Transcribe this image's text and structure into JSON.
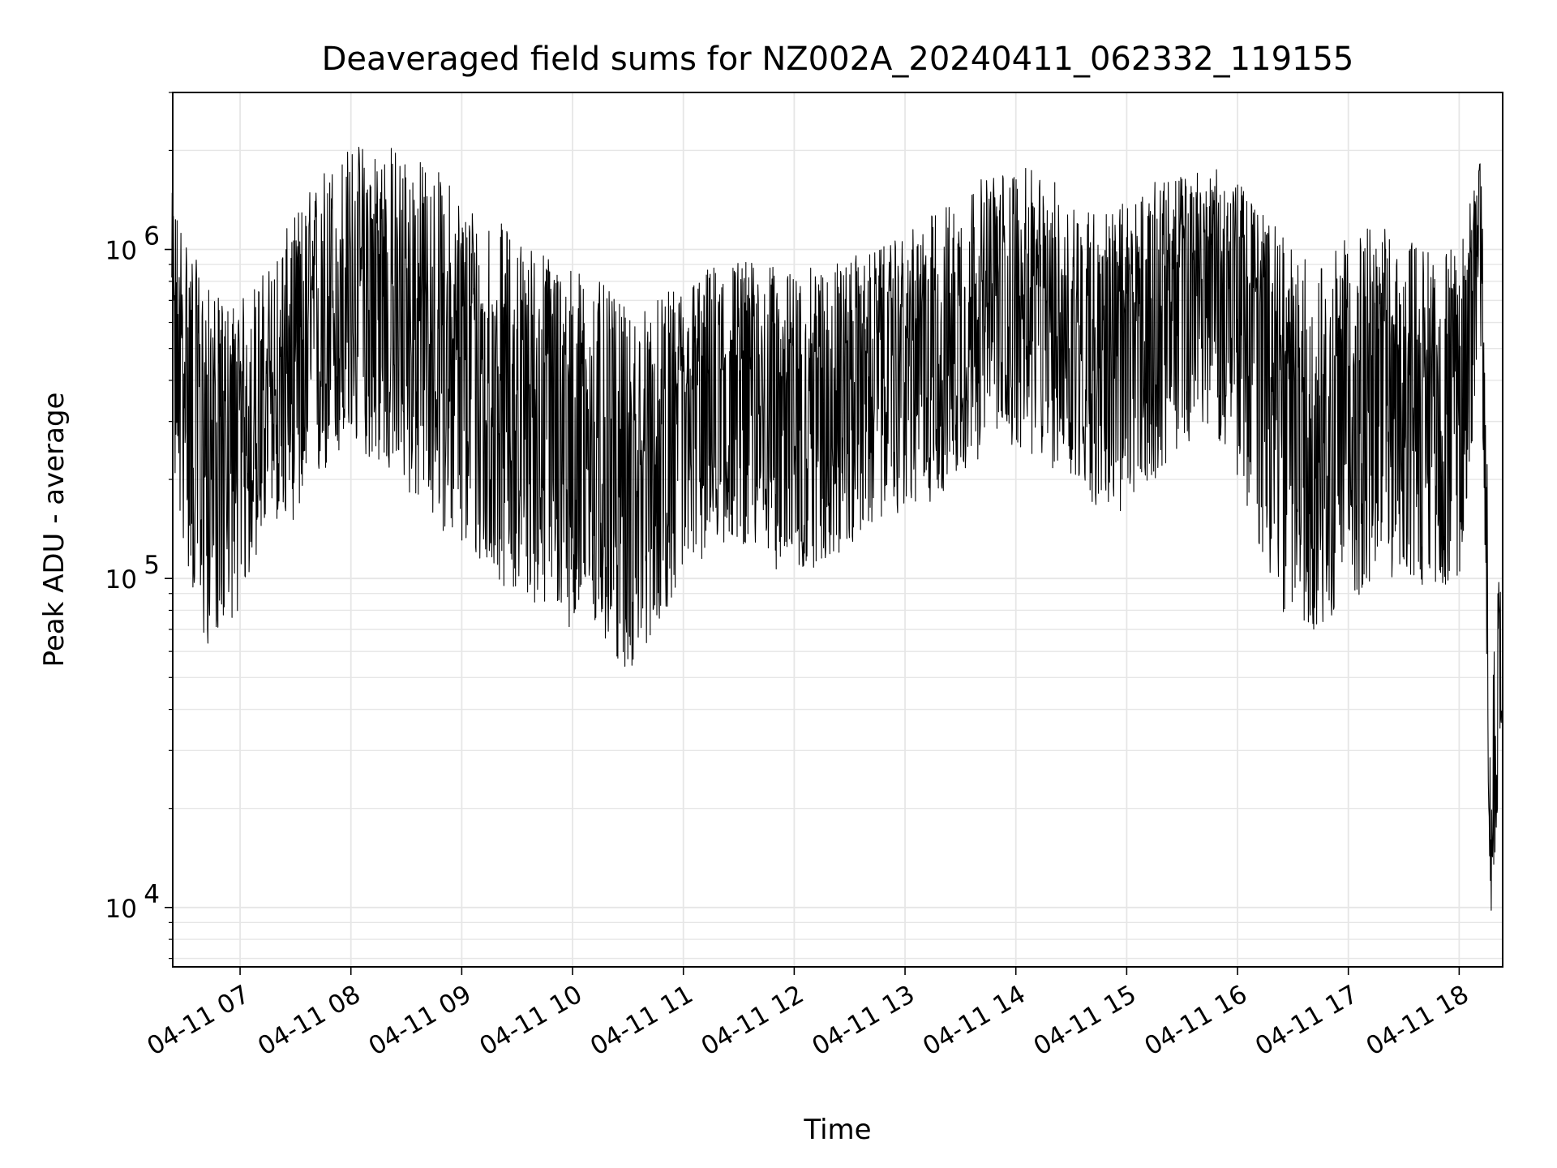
{
  "chart_data": {
    "type": "line",
    "title": "Deaveraged field sums for NZ002A_20240411_062332_119155",
    "xlabel": "Time",
    "ylabel": "Peak ADU - average",
    "yscale": "log",
    "ylim": [
      6600,
      3000000
    ],
    "xlim": [
      "2024-04-11 06:23:32",
      "2024-04-11 18:23:33"
    ],
    "grid": true,
    "line_color": "#000000",
    "grid_color": "#e6e6e6",
    "x_ticks": [
      {
        "label": "04-11 07",
        "value": "2024-04-11 07:00"
      },
      {
        "label": "04-11 08",
        "value": "2024-04-11 08:00"
      },
      {
        "label": "04-11 09",
        "value": "2024-04-11 09:00"
      },
      {
        "label": "04-11 10",
        "value": "2024-04-11 10:00"
      },
      {
        "label": "04-11 11",
        "value": "2024-04-11 11:00"
      },
      {
        "label": "04-11 12",
        "value": "2024-04-11 12:00"
      },
      {
        "label": "04-11 13",
        "value": "2024-04-11 13:00"
      },
      {
        "label": "04-11 14",
        "value": "2024-04-11 14:00"
      },
      {
        "label": "04-11 15",
        "value": "2024-04-11 15:00"
      },
      {
        "label": "04-11 16",
        "value": "2024-04-11 16:00"
      },
      {
        "label": "04-11 17",
        "value": "2024-04-11 17:00"
      },
      {
        "label": "04-11 18",
        "value": "2024-04-11 18:00"
      }
    ],
    "y_ticks": [
      {
        "base": "10",
        "exp": "4",
        "value": 10000
      },
      {
        "base": "10",
        "exp": "5",
        "value": 100000
      },
      {
        "base": "10",
        "exp": "6",
        "value": 1000000
      }
    ],
    "series": [
      {
        "x": [
          "2024-04-11 06:23",
          "2024-04-11 06:30",
          "2024-04-11 06:40",
          "2024-04-11 06:50",
          "2024-04-11 07:00",
          "2024-04-11 07:15",
          "2024-04-11 07:30",
          "2024-04-11 07:45",
          "2024-04-11 08:00",
          "2024-04-11 08:15",
          "2024-04-11 08:30",
          "2024-04-11 08:45",
          "2024-04-11 09:00",
          "2024-04-11 09:15",
          "2024-04-11 09:30",
          "2024-04-11 09:45",
          "2024-04-11 10:00",
          "2024-04-11 10:15",
          "2024-04-11 10:30",
          "2024-04-11 10:45",
          "2024-04-11 11:00",
          "2024-04-11 11:15",
          "2024-04-11 11:30",
          "2024-04-11 11:45",
          "2024-04-11 12:00",
          "2024-04-11 12:15",
          "2024-04-11 12:30",
          "2024-04-11 12:45",
          "2024-04-11 13:00",
          "2024-04-11 13:15",
          "2024-04-11 13:30",
          "2024-04-11 13:45",
          "2024-04-11 14:00",
          "2024-04-11 14:15",
          "2024-04-11 14:30",
          "2024-04-11 14:45",
          "2024-04-11 15:00",
          "2024-04-11 15:15",
          "2024-04-11 15:30",
          "2024-04-11 15:45",
          "2024-04-11 16:00",
          "2024-04-11 16:15",
          "2024-04-11 16:30",
          "2024-04-11 16:45",
          "2024-04-11 17:00",
          "2024-04-11 17:15",
          "2024-04-11 17:30",
          "2024-04-11 17:45",
          "2024-04-11 18:00",
          "2024-04-11 18:12",
          "2024-04-11 18:17",
          "2024-04-11 18:23"
        ],
        "y": [
          600000,
          450000,
          300000,
          280000,
          280000,
          330000,
          450000,
          600000,
          700000,
          750000,
          650000,
          550000,
          450000,
          400000,
          380000,
          350000,
          320000,
          250000,
          200000,
          220000,
          320000,
          380000,
          420000,
          400000,
          380000,
          420000,
          450000,
          480000,
          500000,
          550000,
          600000,
          650000,
          700000,
          650000,
          580000,
          550000,
          600000,
          700000,
          850000,
          950000,
          900000,
          600000,
          350000,
          300000,
          400000,
          450000,
          420000,
          380000,
          400000,
          2000000,
          10000,
          60000
        ],
        "lower": [
          200000,
          120000,
          60000,
          70000,
          80000,
          150000,
          150000,
          200000,
          250000,
          220000,
          180000,
          150000,
          120000,
          100000,
          90000,
          80000,
          70000,
          65000,
          50000,
          70000,
          100000,
          120000,
          130000,
          110000,
          100000,
          110000,
          120000,
          150000,
          160000,
          170000,
          200000,
          250000,
          250000,
          220000,
          200000,
          160000,
          150000,
          200000,
          250000,
          300000,
          200000,
          100000,
          70000,
          70000,
          80000,
          100000,
          100000,
          90000,
          100000,
          500000,
          9000,
          30000
        ],
        "upper": [
          1500000,
          1200000,
          800000,
          700000,
          700000,
          900000,
          1300000,
          1800000,
          2100000,
          2200000,
          2000000,
          1800000,
          1500000,
          1300000,
          1100000,
          1000000,
          900000,
          800000,
          650000,
          700000,
          800000,
          900000,
          950000,
          900000,
          850000,
          900000,
          950000,
          1000000,
          1100000,
          1300000,
          1500000,
          1700000,
          1800000,
          1700000,
          1500000,
          1300000,
          1400000,
          1600000,
          1700000,
          1800000,
          1600000,
          1300000,
          1000000,
          900000,
          1100000,
          1200000,
          1100000,
          1000000,
          1000000,
          2000000,
          60000,
          120000
        ]
      }
    ]
  }
}
